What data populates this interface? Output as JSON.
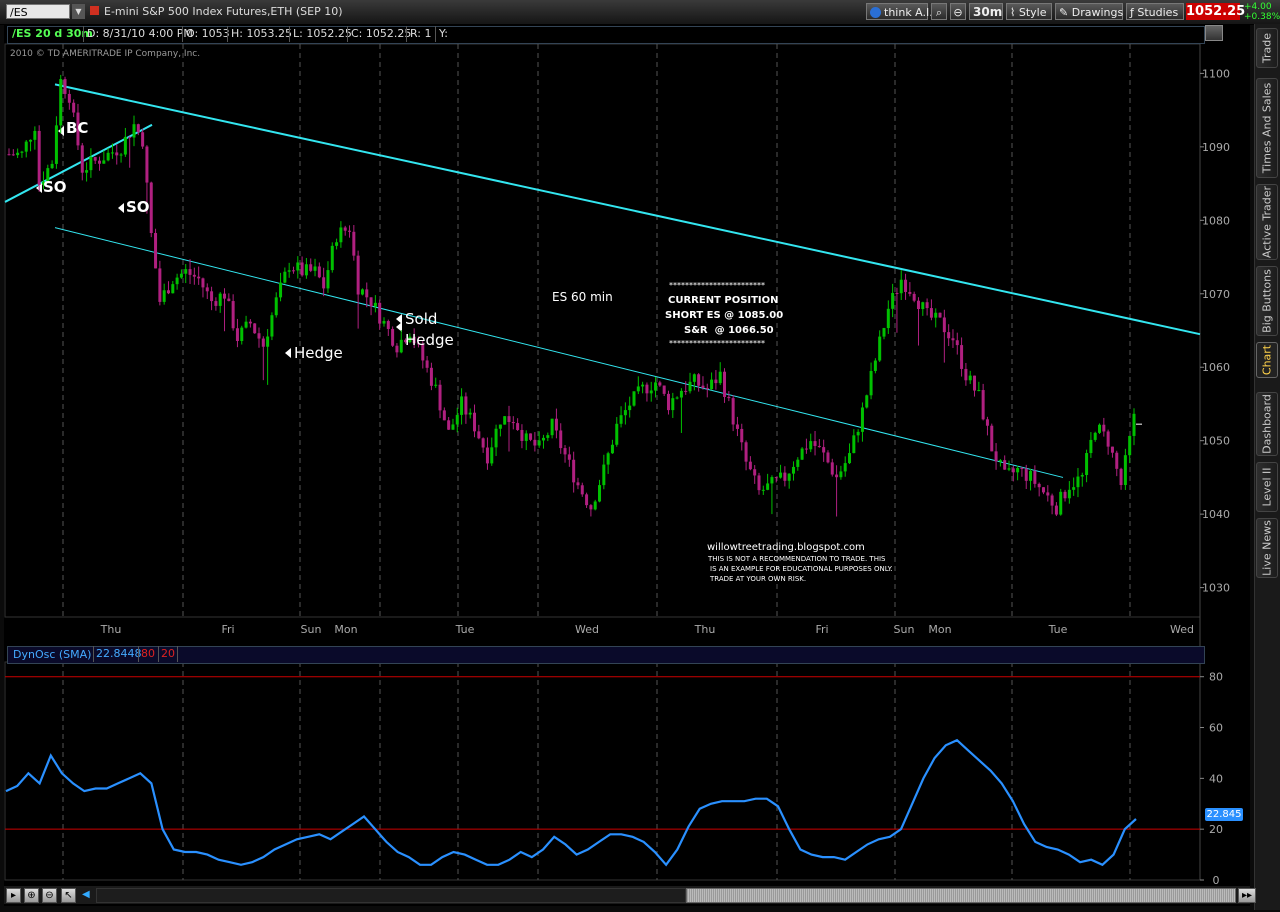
{
  "toolbar": {
    "symbol": "/ES",
    "description": "E-mini S&P 500 Index Futures,ETH (SEP 10)",
    "think_ai": "think A.I.",
    "timeframe": "30m",
    "style": "Style",
    "drawings": "Drawings",
    "studies": "Studies",
    "last_price": "1052.25",
    "change": "+4.00",
    "change_pct": "+0.38%"
  },
  "sidebar": {
    "tabs": [
      "Trade",
      "Times And Sales",
      "Active Trader",
      "Big Buttons",
      "Chart",
      "Dashboard",
      "Level II",
      "Live News"
    ],
    "active": "Chart"
  },
  "infobar": {
    "title": "/ES 20 d 30m",
    "date": "D: 8/31/10 4:00 PM",
    "open": "O: 1053",
    "high": "H: 1053.25",
    "low": "L: 1052.25",
    "close": "C: 1052.25",
    "range": "R: 1",
    "y": "Y:"
  },
  "copyright": "2010 © TD AMERITRADE IP Company, Inc.",
  "colors": {
    "up_candle": "#00c000",
    "down_candle": "#b02080",
    "trendline": "#33e6f0",
    "grid": "#555555",
    "oscillator": "#2a90ff",
    "levels": "#cc0000",
    "price_label": "#cc0000"
  },
  "chart_data": [
    {
      "type": "candlestick",
      "title": "",
      "ylim": [
        1026,
        1104
      ],
      "y_ticks": [
        1030,
        1040,
        1050,
        1060,
        1070,
        1080,
        1090,
        1100
      ],
      "x_labels": [
        "Thu",
        "Fri",
        "Sun",
        "Mon",
        "Tue",
        "Wed",
        "Thu",
        "Fri",
        "Sun",
        "Mon",
        "Tue",
        "Wed"
      ],
      "grid": "vertical dashed day separators",
      "close_path": [
        [
          0,
          1089
        ],
        [
          3,
          1089
        ],
        [
          6,
          1093
        ],
        [
          7,
          1085
        ],
        [
          10,
          1088
        ],
        [
          12,
          1099
        ],
        [
          14,
          1097
        ],
        [
          17,
          1087
        ],
        [
          20,
          1088
        ],
        [
          23,
          1089
        ],
        [
          26,
          1090
        ],
        [
          29,
          1093
        ],
        [
          31,
          1091
        ],
        [
          33,
          1078
        ],
        [
          35,
          1069
        ],
        [
          38,
          1072
        ],
        [
          41,
          1073
        ],
        [
          44,
          1072
        ],
        [
          47,
          1069
        ],
        [
          50,
          1070
        ],
        [
          53,
          1064
        ],
        [
          56,
          1066
        ],
        [
          59,
          1063
        ],
        [
          62,
          1069
        ],
        [
          65,
          1074
        ],
        [
          68,
          1073
        ],
        [
          71,
          1073
        ],
        [
          73,
          1071
        ],
        [
          76,
          1078
        ],
        [
          79,
          1079
        ],
        [
          81,
          1071
        ],
        [
          84,
          1069
        ],
        [
          87,
          1066
        ],
        [
          90,
          1063
        ],
        [
          93,
          1065
        ],
        [
          96,
          1061
        ],
        [
          99,
          1057
        ],
        [
          102,
          1051
        ],
        [
          105,
          1055
        ],
        [
          108,
          1052
        ],
        [
          111,
          1048
        ],
        [
          114,
          1053
        ],
        [
          117,
          1053
        ],
        [
          120,
          1050
        ],
        [
          123,
          1049
        ],
        [
          126,
          1052
        ],
        [
          129,
          1048
        ],
        [
          132,
          1044
        ],
        [
          135,
          1041
        ],
        [
          138,
          1046
        ],
        [
          141,
          1052
        ],
        [
          144,
          1055
        ],
        [
          147,
          1057
        ],
        [
          150,
          1058
        ],
        [
          153,
          1055
        ],
        [
          156,
          1057
        ],
        [
          159,
          1058
        ],
        [
          162,
          1057
        ],
        [
          165,
          1059
        ],
        [
          168,
          1053
        ],
        [
          171,
          1047
        ],
        [
          174,
          1043
        ],
        [
          177,
          1044
        ],
        [
          180,
          1045
        ],
        [
          183,
          1048
        ],
        [
          186,
          1050
        ],
        [
          189,
          1048
        ],
        [
          192,
          1045
        ],
        [
          195,
          1048
        ],
        [
          198,
          1054
        ],
        [
          201,
          1061
        ],
        [
          204,
          1068
        ],
        [
          207,
          1072
        ],
        [
          210,
          1070
        ],
        [
          213,
          1067
        ],
        [
          216,
          1066
        ],
        [
          219,
          1064
        ],
        [
          222,
          1059
        ],
        [
          225,
          1056
        ],
        [
          228,
          1049
        ],
        [
          231,
          1045
        ],
        [
          234,
          1046
        ],
        [
          237,
          1045
        ],
        [
          240,
          1043
        ],
        [
          243,
          1041
        ],
        [
          246,
          1044
        ],
        [
          249,
          1045
        ],
        [
          252,
          1052
        ],
        [
          255,
          1050
        ],
        [
          258,
          1044
        ],
        [
          261,
          1053
        ]
      ],
      "trendlines": [
        {
          "from": [
            1098,
            "start of Thu"
          ],
          "to": [
            1064,
            "right edge"
          ]
        },
        {
          "from": [
            1083,
            "left edge"
          ],
          "to": [
            1093,
            "Thu midday"
          ]
        },
        {
          "from": [
            1079,
            "start of Thu"
          ],
          "to": [
            1045,
            "Tue"
          ]
        }
      ],
      "annotations": {
        "bc": "BC",
        "so1": "SO",
        "so2": "SO",
        "hedge1": "Hedge",
        "sold": "Sold",
        "hedge2": "Hedge",
        "es60": "ES 60 min",
        "stars": "************************",
        "current_position": "CURRENT POSITION",
        "short": "SHORT ES @ 1085.00",
        "snr": "S&R  @ 1066.50",
        "blog": "willowtreetrading.blogspot.com",
        "disclaimer1": "THIS IS NOT A RECOMMENDATION TO TRADE. THIS",
        "disclaimer2": "IS AN EXAMPLE FOR EDUCATIONAL PURPOSES ONLY.",
        "disclaimer3": "TRADE AT YOUR OWN RISK."
      }
    },
    {
      "type": "line",
      "title": "DynOsc (SMA)",
      "value_label": "22.8448",
      "upper_level": "80",
      "lower_level": "20",
      "current_value": "22.845",
      "ylim": [
        0,
        85
      ],
      "y_ticks": [
        0,
        20,
        40,
        60,
        80
      ],
      "series": [
        {
          "name": "DynOsc (SMA)",
          "values": [
            35,
            37,
            42,
            38,
            49,
            42,
            38,
            35,
            36,
            36,
            38,
            40,
            42,
            38,
            20,
            12,
            11,
            11,
            10,
            8,
            7,
            6,
            7,
            9,
            12,
            14,
            16,
            17,
            18,
            16,
            19,
            22,
            25,
            20,
            15,
            11,
            9,
            6,
            6,
            9,
            11,
            10,
            8,
            6,
            6,
            8,
            11,
            9,
            12,
            17,
            14,
            10,
            12,
            15,
            18,
            18,
            17,
            15,
            11,
            6,
            12,
            21,
            28,
            30,
            31,
            31,
            31,
            32,
            32,
            29,
            20,
            12,
            10,
            9,
            9,
            8,
            11,
            14,
            16,
            17,
            20,
            30,
            40,
            48,
            53,
            55,
            51,
            47,
            43,
            38,
            31,
            22,
            15,
            13,
            12,
            10,
            7,
            8,
            6,
            10,
            20,
            24
          ]
        }
      ]
    }
  ]
}
